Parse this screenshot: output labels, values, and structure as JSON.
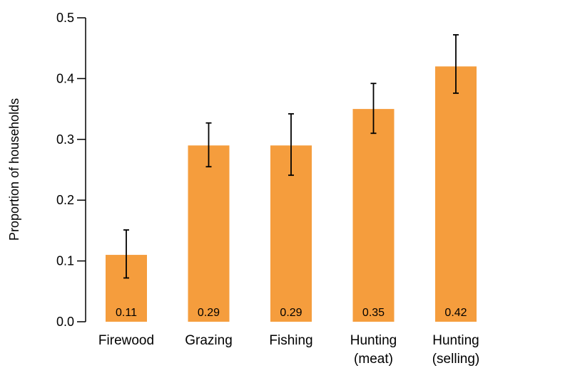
{
  "chart_data": {
    "type": "bar",
    "title": "",
    "xlabel": "",
    "ylabel": "Proportion of households",
    "ylim": [
      0,
      0.5
    ],
    "yticks": [
      "0.0",
      "0.1",
      "0.2",
      "0.3",
      "0.4",
      "0.5"
    ],
    "ytick_values": [
      0,
      0.1,
      0.2,
      0.3,
      0.4,
      0.5
    ],
    "grid": false,
    "legend": "none",
    "categories": [
      [
        "Firewood"
      ],
      [
        "Grazing"
      ],
      [
        "Fishing"
      ],
      [
        "Hunting",
        "(meat)"
      ],
      [
        "Hunting",
        "(selling)"
      ]
    ],
    "values": [
      0.11,
      0.29,
      0.29,
      0.35,
      0.42
    ],
    "data_labels": [
      "0.11",
      "0.29",
      "0.29",
      "0.35",
      "0.42"
    ],
    "error_low": [
      0.072,
      0.255,
      0.241,
      0.31,
      0.376
    ],
    "error_high": [
      0.151,
      0.327,
      0.342,
      0.392,
      0.472
    ],
    "colors": {
      "bar": "#F59D3D",
      "axis": "#000000",
      "error_bar": "#000000"
    }
  }
}
